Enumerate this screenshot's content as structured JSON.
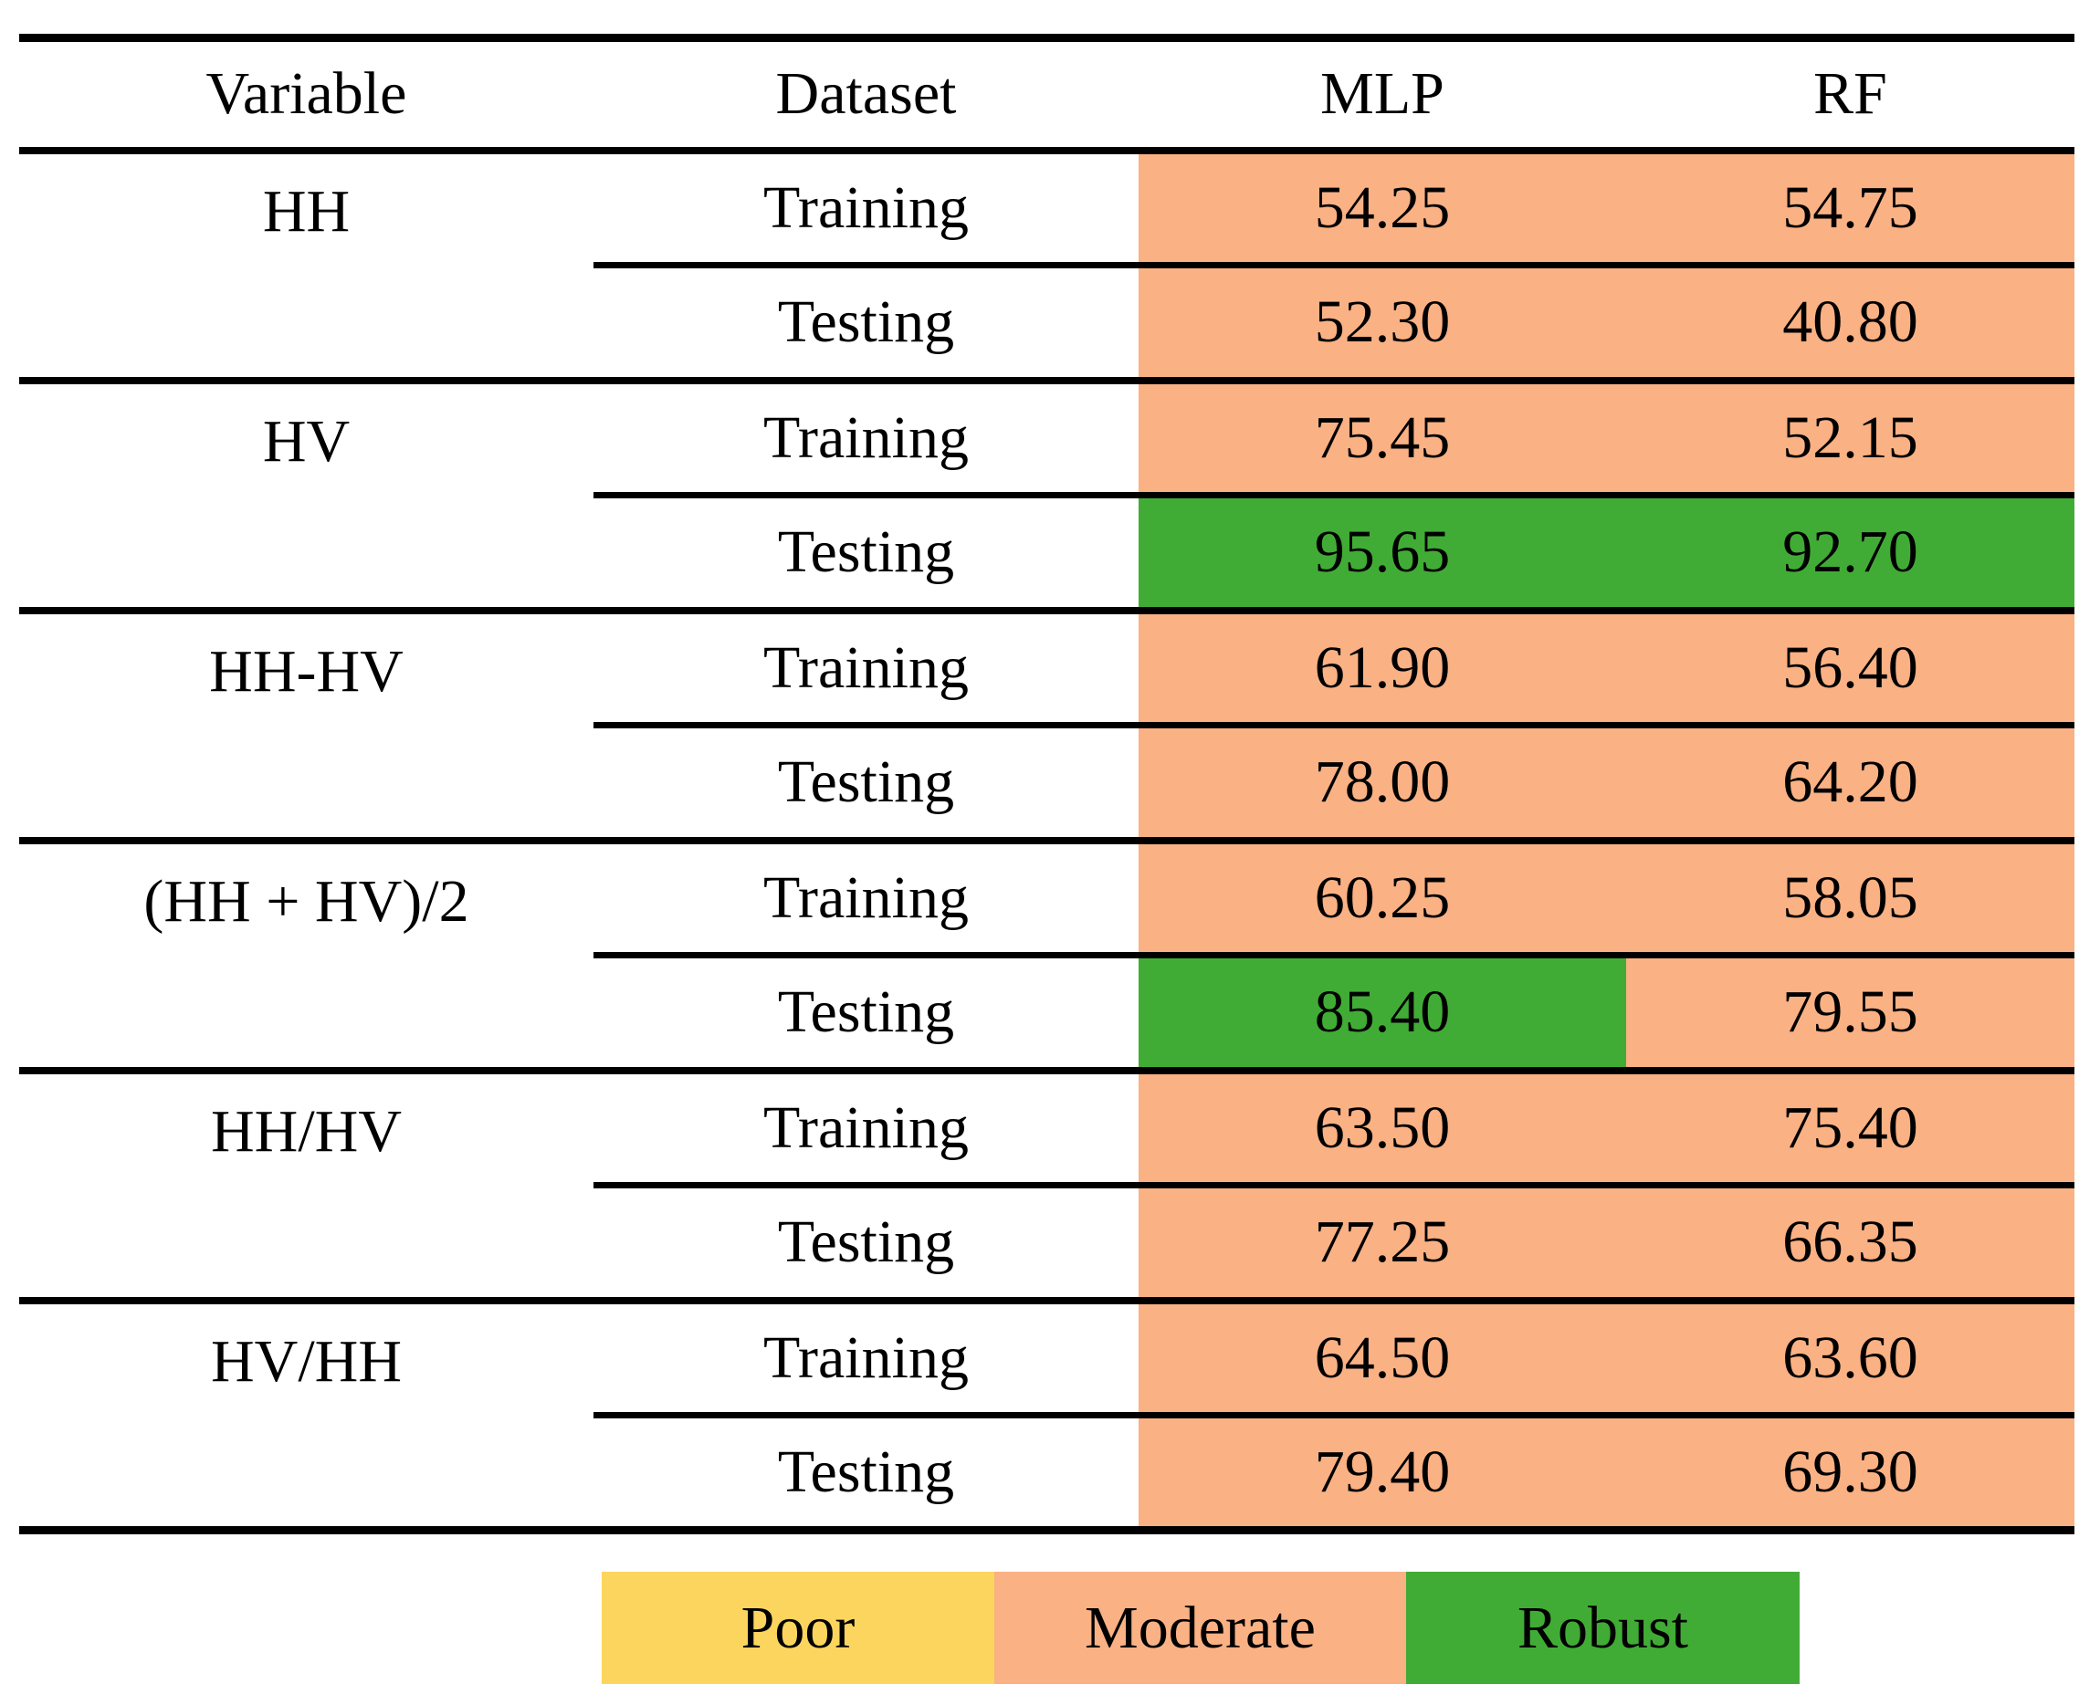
{
  "table": {
    "headers": {
      "variable": "Variable",
      "dataset": "Dataset",
      "mlp": "MLP",
      "rf": "RF"
    },
    "groups": [
      {
        "variable": "HH",
        "rows": [
          {
            "dataset": "Training",
            "mlp": {
              "value": "54.25",
              "level": "moderate"
            },
            "rf": {
              "value": "54.75",
              "level": "moderate"
            }
          },
          {
            "dataset": "Testing",
            "mlp": {
              "value": "52.30",
              "level": "moderate"
            },
            "rf": {
              "value": "40.80",
              "level": "moderate"
            }
          }
        ]
      },
      {
        "variable": "HV",
        "rows": [
          {
            "dataset": "Training",
            "mlp": {
              "value": "75.45",
              "level": "moderate"
            },
            "rf": {
              "value": "52.15",
              "level": "moderate"
            }
          },
          {
            "dataset": "Testing",
            "mlp": {
              "value": "95.65",
              "level": "robust"
            },
            "rf": {
              "value": "92.70",
              "level": "robust"
            }
          }
        ]
      },
      {
        "variable": "HH-HV",
        "rows": [
          {
            "dataset": "Training",
            "mlp": {
              "value": "61.90",
              "level": "moderate"
            },
            "rf": {
              "value": "56.40",
              "level": "moderate"
            }
          },
          {
            "dataset": "Testing",
            "mlp": {
              "value": "78.00",
              "level": "moderate"
            },
            "rf": {
              "value": "64.20",
              "level": "moderate"
            }
          }
        ]
      },
      {
        "variable": "(HH + HV)/2",
        "rows": [
          {
            "dataset": "Training",
            "mlp": {
              "value": "60.25",
              "level": "moderate"
            },
            "rf": {
              "value": "58.05",
              "level": "moderate"
            }
          },
          {
            "dataset": "Testing",
            "mlp": {
              "value": "85.40",
              "level": "robust"
            },
            "rf": {
              "value": "79.55",
              "level": "moderate"
            }
          }
        ]
      },
      {
        "variable": "HH/HV",
        "rows": [
          {
            "dataset": "Training",
            "mlp": {
              "value": "63.50",
              "level": "moderate"
            },
            "rf": {
              "value": "75.40",
              "level": "moderate"
            }
          },
          {
            "dataset": "Testing",
            "mlp": {
              "value": "77.25",
              "level": "moderate"
            },
            "rf": {
              "value": "66.35",
              "level": "moderate"
            }
          }
        ]
      },
      {
        "variable": "HV/HH",
        "rows": [
          {
            "dataset": "Training",
            "mlp": {
              "value": "64.50",
              "level": "moderate"
            },
            "rf": {
              "value": "63.60",
              "level": "moderate"
            }
          },
          {
            "dataset": "Testing",
            "mlp": {
              "value": "79.40",
              "level": "moderate"
            },
            "rf": {
              "value": "69.30",
              "level": "moderate"
            }
          }
        ]
      }
    ]
  },
  "legend": {
    "items": [
      {
        "label": "Poor",
        "level": "poor"
      },
      {
        "label": "Moderate",
        "level": "moderate"
      },
      {
        "label": "Robust",
        "level": "robust"
      }
    ]
  },
  "colors": {
    "poor": "#FCD55E",
    "moderate": "#FAB184",
    "robust": "#41AC35",
    "line": "#000000"
  }
}
